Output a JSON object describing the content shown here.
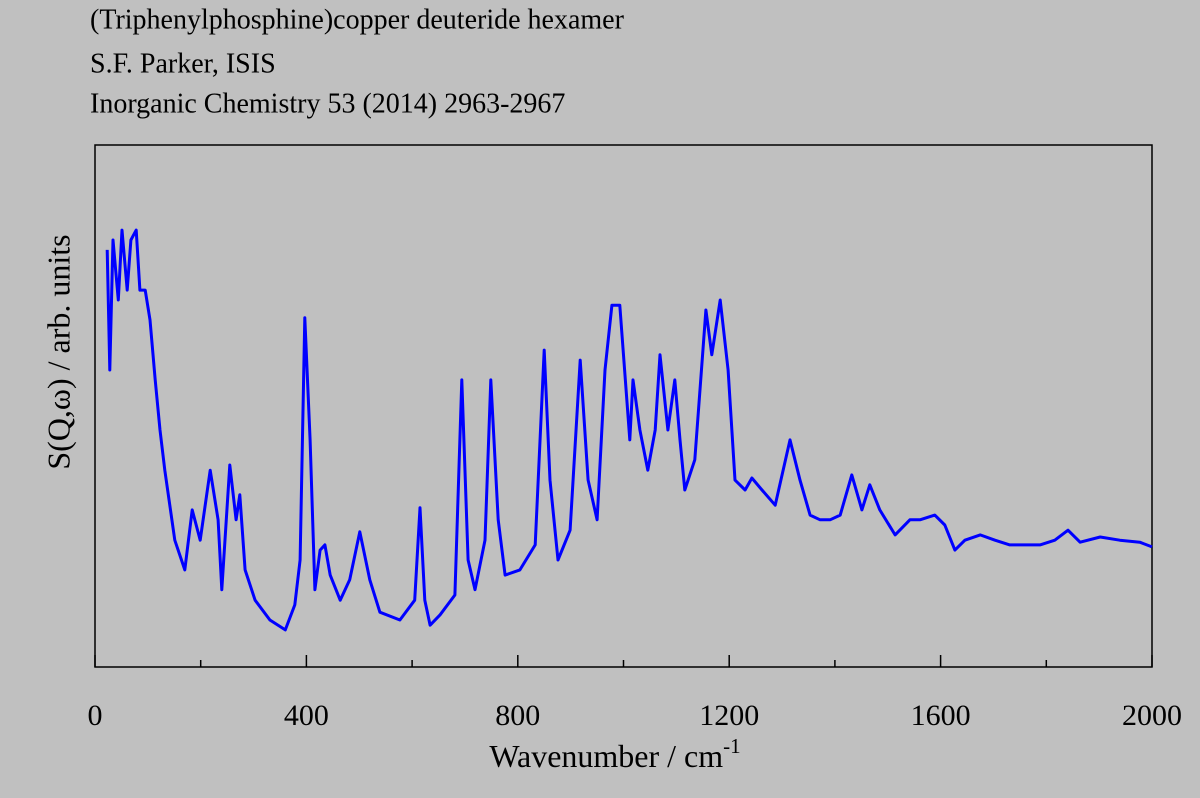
{
  "chart_data": {
    "type": "line",
    "title_lines": [
      "(Triphenylphosphine)copper deuteride hexamer",
      "S.F. Parker, ISIS",
      "Inorganic Chemistry 53 (2014) 2963-2967"
    ],
    "xlabel": {
      "text": "Wavenumber / cm",
      "superscript": "-1"
    },
    "ylabel": "S(Q,ω) / arb. units",
    "xlim": [
      0,
      2000
    ],
    "ylim": [
      0,
      100
    ],
    "xticks": [
      0,
      400,
      800,
      1200,
      1600,
      2000
    ],
    "xminor_ticks": [
      200,
      600,
      1000,
      1400,
      1800
    ],
    "grid": false,
    "series": [
      {
        "color": "#0000ff",
        "x": [
          23,
          28,
          34,
          44,
          51,
          61,
          68,
          78,
          85,
          95,
          104,
          114,
          123,
          132,
          151,
          170,
          184,
          199,
          218,
          233,
          240,
          255,
          267,
          274,
          284,
          303,
          331,
          360,
          378,
          388,
          397,
          407,
          416,
          426,
          435,
          445,
          464,
          482,
          501,
          520,
          539,
          577,
          605,
          615,
          624,
          634,
          653,
          681,
          694,
          706,
          719,
          738,
          749,
          763,
          776,
          804,
          833,
          850,
          861,
          876,
          899,
          918,
          933,
          950,
          965,
          978,
          993,
          1012,
          1018,
          1031,
          1046,
          1060,
          1069,
          1084,
          1097,
          1107,
          1116,
          1135,
          1156,
          1167,
          1183,
          1198,
          1211,
          1230,
          1243,
          1262,
          1287,
          1315,
          1334,
          1353,
          1372,
          1391,
          1410,
          1432,
          1451,
          1466,
          1485,
          1514,
          1542,
          1561,
          1589,
          1608,
          1627,
          1646,
          1675,
          1703,
          1731,
          1760,
          1788,
          1816,
          1841,
          1864,
          1902,
          1939,
          1977,
          2000
        ],
        "values": [
          79.9,
          56.9,
          81.8,
          70.3,
          83.7,
          72.2,
          81.8,
          83.7,
          72.2,
          72.2,
          66.5,
          55.0,
          45.4,
          37.7,
          24.3,
          18.6,
          30.1,
          24.3,
          37.7,
          28.2,
          14.8,
          38.7,
          28.2,
          33.0,
          18.6,
          12.8,
          9.0,
          7.1,
          11.9,
          20.5,
          66.9,
          43.5,
          14.8,
          22.4,
          23.4,
          17.6,
          12.8,
          16.7,
          25.9,
          16.7,
          10.5,
          9.0,
          12.8,
          30.5,
          12.8,
          8.0,
          10.0,
          13.8,
          55.0,
          20.5,
          14.8,
          24.3,
          55.0,
          28.2,
          17.6,
          18.6,
          23.4,
          60.7,
          35.8,
          20.5,
          26.2,
          58.8,
          35.8,
          28.2,
          56.9,
          69.3,
          69.3,
          43.5,
          55.0,
          45.4,
          37.7,
          45.4,
          59.8,
          45.4,
          55.0,
          43.5,
          33.9,
          39.7,
          68.4,
          59.8,
          70.3,
          56.9,
          35.8,
          33.9,
          36.2,
          33.9,
          31.0,
          43.5,
          35.8,
          29.1,
          28.2,
          28.2,
          29.1,
          36.8,
          30.1,
          34.9,
          30.1,
          25.3,
          28.2,
          28.2,
          29.1,
          27.2,
          22.4,
          24.3,
          25.3,
          24.3,
          23.4,
          23.4,
          23.4,
          24.3,
          26.2,
          23.9,
          24.9,
          24.3,
          23.9,
          23.0
        ]
      }
    ]
  }
}
